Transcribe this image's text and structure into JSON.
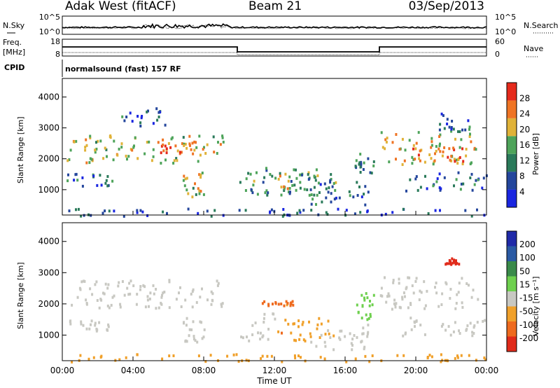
{
  "header": {
    "radar": "Adak West (fitACF)",
    "beam": "Beam 21",
    "date": "03/Sep/2013"
  },
  "panels": {
    "noise": {
      "left_label": "N.Sky",
      "left_ticks": [
        "10^5",
        "10^0"
      ],
      "right_label": "N.Search",
      "right_ticks": [
        "10^5",
        "10^0"
      ]
    },
    "freq": {
      "left_label_1": "Freq.",
      "left_label_2": "[MHz]",
      "left_ticks": [
        "18",
        "8"
      ],
      "right_label": "Nave",
      "right_ticks": [
        "60",
        "0"
      ]
    },
    "cpid": {
      "label": "CPID",
      "text": "normalsound (fast) 157 RF"
    }
  },
  "chart_data": [
    {
      "type": "heatmap",
      "name": "power",
      "ylabel": "Slant Range [km]",
      "xlabel": "",
      "ylim": [
        180,
        4600
      ],
      "yticks": [
        "1000",
        "2000",
        "3000",
        "4000"
      ],
      "colorbar": {
        "label": "Power [dB]",
        "ticks": [
          "4",
          "8",
          "12",
          "16",
          "20",
          "24",
          "28"
        ],
        "range": [
          0,
          30
        ],
        "colors": [
          "#1a26e0",
          "#24469c",
          "#2a7a5a",
          "#4ea45a",
          "#e0b238",
          "#ef7424",
          "#e52a1c"
        ]
      },
      "regions": [
        {
          "t": [
            0.2,
            9.2
          ],
          "r": [
            1900,
            2800
          ],
          "level": 18
        },
        {
          "t": [
            5.4,
            7.4
          ],
          "r": [
            2200,
            2600
          ],
          "level": 23
        },
        {
          "t": [
            0.2,
            2.8
          ],
          "r": [
            1150,
            1550
          ],
          "level": 9
        },
        {
          "t": [
            6.8,
            8.0
          ],
          "r": [
            800,
            1600
          ],
          "level": 17
        },
        {
          "t": [
            10.0,
            15.5
          ],
          "r": [
            850,
            1750
          ],
          "level": 12
        },
        {
          "t": [
            12.0,
            14.5
          ],
          "r": [
            1000,
            1500
          ],
          "level": 18
        },
        {
          "t": [
            14.0,
            17.3
          ],
          "r": [
            550,
            1400
          ],
          "level": 9
        },
        {
          "t": [
            16.4,
            17.6
          ],
          "r": [
            1500,
            2200
          ],
          "level": 10
        },
        {
          "t": [
            17.9,
            23.5
          ],
          "r": [
            1850,
            2900
          ],
          "level": 19
        },
        {
          "t": [
            19.8,
            22.8
          ],
          "r": [
            1900,
            2400
          ],
          "level": 24
        },
        {
          "t": [
            19.0,
            24.0
          ],
          "r": [
            1000,
            1600
          ],
          "level": 9
        },
        {
          "t": [
            3.0,
            6.0
          ],
          "r": [
            3100,
            3700
          ],
          "level": 8
        },
        {
          "t": [
            21.3,
            23.0
          ],
          "r": [
            2900,
            3500
          ],
          "level": 9
        },
        {
          "t": [
            0.0,
            24.0
          ],
          "r": [
            180,
            420
          ],
          "level": 6
        }
      ]
    },
    {
      "type": "heatmap",
      "name": "velocity",
      "ylabel": "Slant Range [km]",
      "xlabel": "Time UT",
      "ylim": [
        180,
        4600
      ],
      "yticks": [
        "1000",
        "2000",
        "3000",
        "4000"
      ],
      "xticks": [
        "00:00",
        "04:00",
        "08:00",
        "12:00",
        "16:00",
        "20:00",
        "00:00"
      ],
      "xlim_hours": [
        0,
        24
      ],
      "colorbar": {
        "label": "Velocity [m s⁻¹]",
        "ticks": [
          "200",
          "100",
          "50",
          "15",
          "-15",
          "-50",
          "-100",
          "-200"
        ],
        "colors": [
          "#202aa8",
          "#2a5aa4",
          "#3a8a4a",
          "#6ed04e",
          "#c8c8c2",
          "#f0a02a",
          "#ee6a1e",
          "#e02a1a"
        ]
      },
      "regions": [
        {
          "t": [
            0.2,
            9.2
          ],
          "r": [
            1900,
            2800
          ],
          "v": 0
        },
        {
          "t": [
            0.2,
            2.8
          ],
          "r": [
            1150,
            1550
          ],
          "v": 0
        },
        {
          "t": [
            6.8,
            8.0
          ],
          "r": [
            800,
            1600
          ],
          "v": 0
        },
        {
          "t": [
            10.0,
            12.0
          ],
          "r": [
            850,
            1750
          ],
          "v": 0
        },
        {
          "t": [
            12.0,
            15.5
          ],
          "r": [
            850,
            1600
          ],
          "v": -40
        },
        {
          "t": [
            11.2,
            13.5
          ],
          "r": [
            1950,
            2150
          ],
          "v": -60
        },
        {
          "t": [
            14.0,
            17.3
          ],
          "r": [
            550,
            1400
          ],
          "v": 0
        },
        {
          "t": [
            16.6,
            17.6
          ],
          "r": [
            1500,
            2400
          ],
          "v": 40
        },
        {
          "t": [
            17.9,
            23.5
          ],
          "r": [
            1850,
            2900
          ],
          "v": 0
        },
        {
          "t": [
            19.0,
            24.0
          ],
          "r": [
            1000,
            1600
          ],
          "v": 0
        },
        {
          "t": [
            21.6,
            22.4
          ],
          "r": [
            3300,
            3500
          ],
          "v": -200
        },
        {
          "t": [
            0.0,
            24.0
          ],
          "r": [
            180,
            420
          ],
          "v": -30
        }
      ]
    }
  ]
}
